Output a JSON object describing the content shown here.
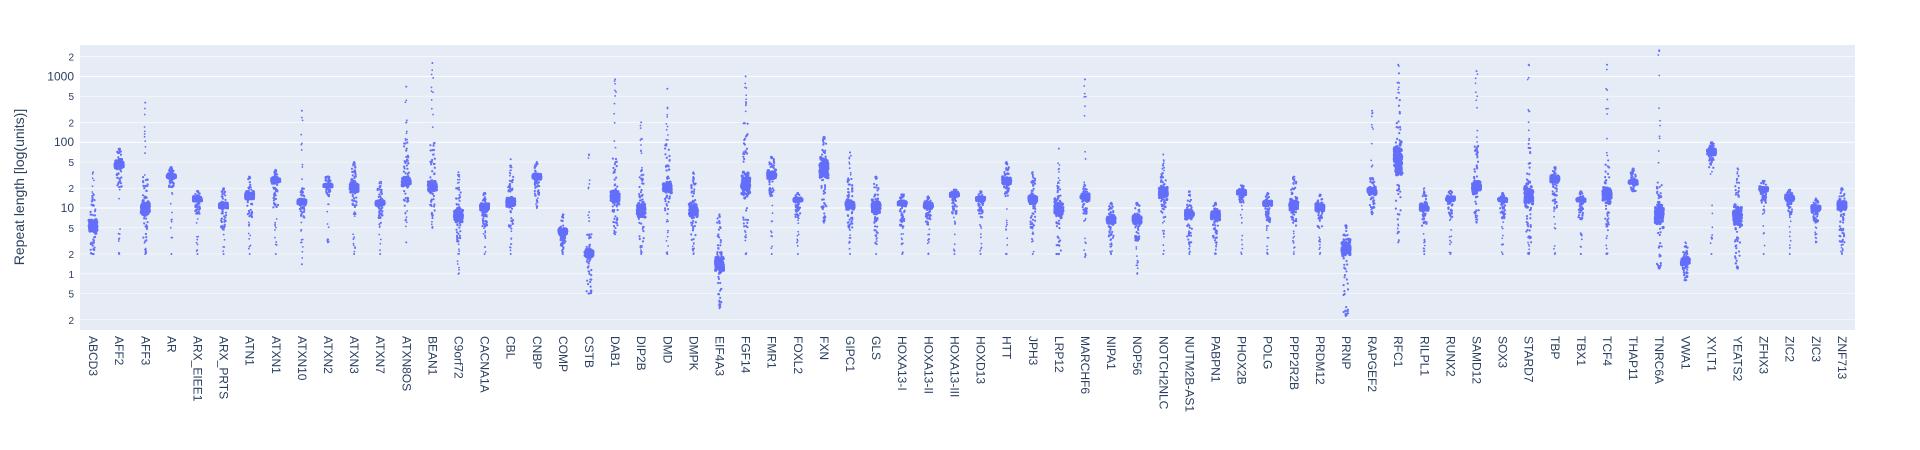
{
  "chart_data": {
    "type": "scatter",
    "title": "",
    "xlabel": "",
    "ylabel": "Repeat length [log(units)]",
    "yscale": "log",
    "ylim": [
      0.14,
      3000
    ],
    "grid": true,
    "legend": "none",
    "y_major_ticks": [
      {
        "value": 10,
        "label": "10"
      },
      {
        "value": 100,
        "label": "100"
      },
      {
        "value": 1000,
        "label": "1000"
      }
    ],
    "y_minor_ticks": [
      {
        "value": 0.2,
        "label": "2"
      },
      {
        "value": 0.5,
        "label": "5"
      },
      {
        "value": 1,
        "label": "1"
      },
      {
        "value": 2,
        "label": "2"
      },
      {
        "value": 5,
        "label": "5"
      },
      {
        "value": 20,
        "label": "2"
      },
      {
        "value": 50,
        "label": "5"
      },
      {
        "value": 200,
        "label": "2"
      },
      {
        "value": 500,
        "label": "5"
      },
      {
        "value": 2000,
        "label": "2"
      }
    ],
    "colors": {
      "marker": "#636efa",
      "plot_bg": "#e5ecf6",
      "grid": "#ffffff"
    },
    "categories": [
      "ABCD3",
      "AFF2",
      "AFF3",
      "AR",
      "ARX_EIEE1",
      "ARX_PRTS",
      "ATN1",
      "ATXN1",
      "ATXN10",
      "ATXN2",
      "ATXN3",
      "ATXN7",
      "ATXN8OS",
      "BEAN1",
      "C9orf72",
      "CACNA1A",
      "CBL",
      "CNBP",
      "COMP",
      "CSTB",
      "DAB1",
      "DIP2B",
      "DMD",
      "DMPK",
      "EIF4A3",
      "FGF14",
      "FMR1",
      "FOXL2",
      "FXN",
      "GIPC1",
      "GLS",
      "HOXA13-I",
      "HOXA13-II",
      "HOXA13-III",
      "HOXD13",
      "HTT",
      "JPH3",
      "LRP12",
      "MARCHF6",
      "NIPA1",
      "NOP56",
      "NOTCH2NLC",
      "NUTM2B-AS1",
      "PABPN1",
      "PHOX2B",
      "POLG",
      "PPP2R2B",
      "PRDM12",
      "PRNP",
      "RAPGEF2",
      "RFC1",
      "RILPL1",
      "RUNX2",
      "SAMD12",
      "SOX3",
      "STARD7",
      "TBP",
      "TBX1",
      "TCF4",
      "THAP11",
      "TNRC6A",
      "VWA1",
      "XYLT1",
      "YEATS2",
      "ZFHX3",
      "ZIC2",
      "ZIC3",
      "ZNF713"
    ],
    "distributions": [
      {
        "low": 2,
        "q1": 3.5,
        "median": 5,
        "q3": 8,
        "high": 15,
        "max": 35,
        "min": 2
      },
      {
        "low": 20,
        "q1": 35,
        "median": 45,
        "q3": 60,
        "high": 75,
        "max": 80,
        "min": 2
      },
      {
        "low": 3,
        "q1": 6,
        "median": 10,
        "q3": 16,
        "high": 30,
        "max": 400,
        "min": 2
      },
      {
        "low": 20,
        "q1": 26,
        "median": 30,
        "q3": 35,
        "high": 40,
        "max": 42,
        "min": 2
      },
      {
        "low": 8,
        "q1": 12,
        "median": 14,
        "q3": 16,
        "high": 18,
        "max": 18,
        "min": 2
      },
      {
        "low": 5,
        "q1": 9,
        "median": 11,
        "q3": 13,
        "high": 18,
        "max": 20,
        "min": 2
      },
      {
        "low": 7,
        "q1": 12,
        "median": 16,
        "q3": 20,
        "high": 28,
        "max": 30,
        "min": 2
      },
      {
        "low": 10,
        "q1": 22,
        "median": 28,
        "q3": 32,
        "high": 36,
        "max": 38,
        "min": 2
      },
      {
        "low": 7,
        "q1": 10,
        "median": 13,
        "q3": 15,
        "high": 20,
        "max": 300,
        "min": 1.4
      },
      {
        "low": 15,
        "q1": 20,
        "median": 22,
        "q3": 24,
        "high": 30,
        "max": 30,
        "min": 3
      },
      {
        "low": 8,
        "q1": 15,
        "median": 22,
        "q3": 30,
        "high": 45,
        "max": 50,
        "min": 2
      },
      {
        "low": 7,
        "q1": 10,
        "median": 12,
        "q3": 14,
        "high": 20,
        "max": 25,
        "min": 2
      },
      {
        "low": 10,
        "q1": 18,
        "median": 25,
        "q3": 35,
        "high": 100,
        "max": 700,
        "min": 3
      },
      {
        "low": 8,
        "q1": 15,
        "median": 20,
        "q3": 30,
        "high": 100,
        "max": 1600,
        "min": 5
      },
      {
        "low": 3,
        "q1": 5,
        "median": 8,
        "q3": 12,
        "high": 20,
        "max": 35,
        "min": 1
      },
      {
        "low": 5,
        "q1": 8,
        "median": 11,
        "q3": 13,
        "high": 16,
        "max": 17,
        "min": 2
      },
      {
        "low": 5,
        "q1": 9,
        "median": 13,
        "q3": 17,
        "high": 30,
        "max": 55,
        "min": 2
      },
      {
        "low": 15,
        "q1": 25,
        "median": 30,
        "q3": 36,
        "high": 45,
        "max": 50,
        "min": 10
      },
      {
        "low": 2.5,
        "q1": 3.5,
        "median": 4.5,
        "q3": 5.5,
        "high": 7,
        "max": 8,
        "min": 2
      },
      {
        "low": 0.5,
        "q1": 1.5,
        "median": 2.2,
        "q3": 2.8,
        "high": 4,
        "max": 65,
        "min": 0.5
      },
      {
        "low": 5,
        "q1": 10,
        "median": 15,
        "q3": 22,
        "high": 60,
        "max": 900,
        "min": 4
      },
      {
        "low": 3,
        "q1": 6,
        "median": 10,
        "q3": 15,
        "high": 40,
        "max": 200,
        "min": 2
      },
      {
        "low": 8,
        "q1": 15,
        "median": 20,
        "q3": 28,
        "high": 100,
        "max": 650,
        "min": 2
      },
      {
        "low": 3,
        "q1": 6,
        "median": 10,
        "q3": 14,
        "high": 25,
        "max": 35,
        "min": 2
      },
      {
        "low": 0.35,
        "q1": 0.8,
        "median": 1.3,
        "q3": 2.5,
        "high": 7,
        "max": 8,
        "min": 0.3
      },
      {
        "low": 5,
        "q1": 12,
        "median": 20,
        "q3": 45,
        "high": 200,
        "max": 1000,
        "min": 2
      },
      {
        "low": 15,
        "q1": 25,
        "median": 30,
        "q3": 40,
        "high": 55,
        "max": 60,
        "min": 2
      },
      {
        "low": 7,
        "q1": 12,
        "median": 14,
        "q3": 15,
        "high": 16,
        "max": 17,
        "min": 2
      },
      {
        "low": 7,
        "q1": 20,
        "median": 45,
        "q3": 80,
        "high": 110,
        "max": 120,
        "min": 6
      },
      {
        "low": 5,
        "q1": 8,
        "median": 12,
        "q3": 16,
        "high": 30,
        "max": 70,
        "min": 2
      },
      {
        "low": 4,
        "q1": 7,
        "median": 11,
        "q3": 16,
        "high": 28,
        "max": 30,
        "min": 2
      },
      {
        "low": 5,
        "q1": 10,
        "median": 13,
        "q3": 14,
        "high": 16,
        "max": 16,
        "min": 2
      },
      {
        "low": 5,
        "q1": 9,
        "median": 11,
        "q3": 13,
        "high": 14,
        "max": 15,
        "min": 2
      },
      {
        "low": 8,
        "q1": 14,
        "median": 16,
        "q3": 18,
        "high": 19,
        "max": 19,
        "min": 2
      },
      {
        "low": 7,
        "q1": 12,
        "median": 14,
        "q3": 16,
        "high": 17,
        "max": 18,
        "min": 2
      },
      {
        "low": 15,
        "q1": 20,
        "median": 25,
        "q3": 33,
        "high": 45,
        "max": 50,
        "min": 2
      },
      {
        "low": 5,
        "q1": 10,
        "median": 14,
        "q3": 18,
        "high": 28,
        "max": 35,
        "min": 2
      },
      {
        "low": 2,
        "q1": 6,
        "median": 10,
        "q3": 15,
        "high": 22,
        "max": 80,
        "min": 2
      },
      {
        "low": 8,
        "q1": 12,
        "median": 15,
        "q3": 18,
        "high": 22,
        "max": 900,
        "min": 1.8
      },
      {
        "low": 3,
        "q1": 5,
        "median": 7,
        "q3": 9,
        "high": 11,
        "max": 12,
        "min": 2
      },
      {
        "low": 3,
        "q1": 5,
        "median": 7,
        "q3": 9,
        "high": 11,
        "max": 12,
        "min": 1
      },
      {
        "low": 7,
        "q1": 12,
        "median": 18,
        "q3": 25,
        "high": 35,
        "max": 65,
        "min": 2
      },
      {
        "low": 3,
        "q1": 6,
        "median": 8,
        "q3": 11,
        "high": 15,
        "max": 18,
        "min": 2
      },
      {
        "low": 3,
        "q1": 6,
        "median": 8,
        "q3": 10,
        "high": 11,
        "max": 12,
        "min": 2
      },
      {
        "low": 12,
        "q1": 15,
        "median": 18,
        "q3": 20,
        "high": 22,
        "max": 22,
        "min": 2
      },
      {
        "low": 6,
        "q1": 10,
        "median": 12,
        "q3": 14,
        "high": 16,
        "max": 17,
        "min": 2
      },
      {
        "low": 5,
        "q1": 8,
        "median": 12,
        "q3": 16,
        "high": 25,
        "max": 30,
        "min": 2
      },
      {
        "low": 5,
        "q1": 8,
        "median": 11,
        "q3": 13,
        "high": 15,
        "max": 16,
        "min": 2
      },
      {
        "low": 0.25,
        "q1": 1.5,
        "median": 3,
        "q3": 4,
        "high": 5,
        "max": 5.5,
        "min": 0.23
      },
      {
        "low": 10,
        "q1": 15,
        "median": 18,
        "q3": 22,
        "high": 30,
        "max": 300,
        "min": 8
      },
      {
        "low": 6,
        "q1": 20,
        "median": 60,
        "q3": 150,
        "high": 500,
        "max": 1500,
        "min": 3
      },
      {
        "low": 5,
        "q1": 8,
        "median": 11,
        "q3": 13,
        "high": 16,
        "max": 20,
        "min": 2
      },
      {
        "low": 7,
        "q1": 12,
        "median": 14,
        "q3": 16,
        "high": 18,
        "max": 18,
        "min": 2
      },
      {
        "low": 8,
        "q1": 15,
        "median": 20,
        "q3": 30,
        "high": 100,
        "max": 1200,
        "min": 6
      },
      {
        "low": 7,
        "q1": 12,
        "median": 14,
        "q3": 15,
        "high": 16,
        "max": 17,
        "min": 2
      },
      {
        "low": 3,
        "q1": 8,
        "median": 15,
        "q3": 30,
        "high": 100,
        "max": 1500,
        "min": 2
      },
      {
        "low": 10,
        "q1": 22,
        "median": 30,
        "q3": 35,
        "high": 40,
        "max": 42,
        "min": 2
      },
      {
        "low": 7,
        "q1": 12,
        "median": 14,
        "q3": 15,
        "high": 17,
        "max": 18,
        "min": 2
      },
      {
        "low": 5,
        "q1": 10,
        "median": 15,
        "q3": 25,
        "high": 60,
        "max": 1500,
        "min": 2
      },
      {
        "low": 18,
        "q1": 22,
        "median": 25,
        "q3": 28,
        "high": 35,
        "max": 40,
        "min": 18
      },
      {
        "low": 1.3,
        "q1": 4,
        "median": 10,
        "q3": 16,
        "high": 25,
        "max": 2500,
        "min": 1.2
      },
      {
        "low": 0.8,
        "q1": 1.2,
        "median": 1.6,
        "q3": 2,
        "high": 2.5,
        "max": 3,
        "min": 0.8
      },
      {
        "low": 40,
        "q1": 60,
        "median": 75,
        "q3": 85,
        "high": 95,
        "max": 100,
        "min": 2
      },
      {
        "low": 1.3,
        "q1": 4,
        "median": 8,
        "q3": 15,
        "high": 25,
        "max": 40,
        "min": 1.2
      },
      {
        "low": 12,
        "q1": 16,
        "median": 20,
        "q3": 23,
        "high": 25,
        "max": 26,
        "min": 2
      },
      {
        "low": 8,
        "q1": 12,
        "median": 15,
        "q3": 17,
        "high": 18,
        "max": 19,
        "min": 2
      },
      {
        "low": 6,
        "q1": 8,
        "median": 10,
        "q3": 12,
        "high": 13,
        "max": 14,
        "min": 3
      },
      {
        "low": 3,
        "q1": 8,
        "median": 12,
        "q3": 15,
        "high": 18,
        "max": 20,
        "min": 2
      }
    ]
  }
}
